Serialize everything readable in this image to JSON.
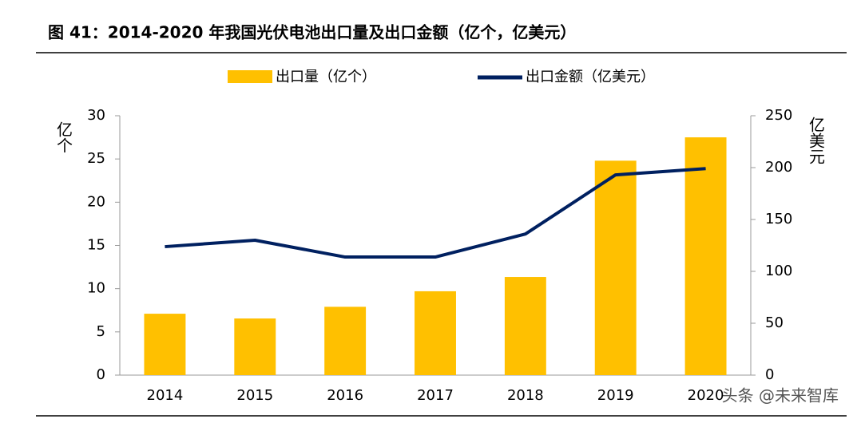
{
  "chart_data": {
    "type": "bar-line",
    "title": "图 41：2014-2020 年我国光伏电池出口量及出口金额（亿个，亿美元）",
    "ylabel": "亿个",
    "y2label": "亿美元",
    "categories": [
      "2014",
      "2015",
      "2016",
      "2017",
      "2018",
      "2019",
      "2020"
    ],
    "series": [
      {
        "name": "出口量（亿个）",
        "color": "#ffc000",
        "kind": "bar",
        "values": [
          7.1,
          6.55,
          7.9,
          9.7,
          11.35,
          24.8,
          27.5
        ]
      },
      {
        "name": "出口金额（亿美元）",
        "color": "#002060",
        "kind": "line",
        "axis": "y2",
        "values": [
          123.8,
          130,
          113.8,
          113.8,
          136,
          193,
          199
        ]
      }
    ],
    "ylim": [
      0,
      30
    ],
    "yticks": [
      0,
      5,
      10,
      15,
      20,
      25,
      30
    ],
    "y2lim": [
      0,
      250
    ],
    "y2ticks": [
      0,
      50,
      100,
      150,
      200,
      250
    ],
    "watermark": "头条 @未来智库"
  }
}
